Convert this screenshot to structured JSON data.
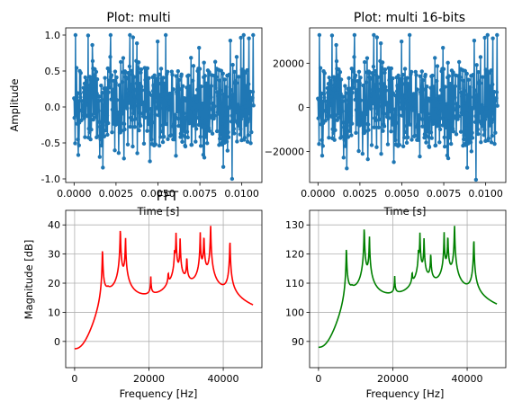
{
  "chart_data": [
    {
      "type": "line",
      "title": "Plot: multi",
      "xlabel": "Time [s]",
      "ylabel": "Amplitude",
      "xlim": [
        -0.0005,
        0.0112
      ],
      "ylim": [
        -1.05,
        1.1
      ],
      "xticks": [
        "0.0000",
        "0.0025",
        "0.0050",
        "0.0075",
        "0.0100"
      ],
      "xtick_values": [
        0,
        0.0025,
        0.005,
        0.0075,
        0.01
      ],
      "yticks": [
        "1.0",
        "0.5",
        "0.0",
        "-0.5",
        "-1.0"
      ],
      "ytick_values": [
        1.0,
        0.5,
        0.0,
        -0.5,
        -1.0
      ],
      "grid": false,
      "marker": "circle",
      "series": [
        {
          "color": "#1f77b4",
          "duration": 0.0107,
          "n": 512,
          "amplitude": 1.0
        }
      ]
    },
    {
      "type": "line",
      "title": "Plot: multi 16-bits",
      "xlabel": "Time [s]",
      "ylabel": "",
      "xlim": [
        -0.0005,
        0.0112
      ],
      "ylim": [
        -34000,
        36000
      ],
      "xticks": [
        "0.0000",
        "0.0025",
        "0.0050",
        "0.0075",
        "0.0100"
      ],
      "xtick_values": [
        0,
        0.0025,
        0.005,
        0.0075,
        0.01
      ],
      "yticks": [
        "20000",
        "0",
        "−20000"
      ],
      "ytick_values": [
        20000,
        0,
        -20000
      ],
      "grid": false,
      "marker": "circle",
      "series": [
        {
          "color": "#1f77b4",
          "duration": 0.0107,
          "n": 512,
          "amplitude": 32767
        }
      ]
    },
    {
      "type": "line",
      "title": "FFT",
      "xlabel": "Frequency [Hz]",
      "ylabel": "Magnitude [dB]",
      "xlim": [
        -2400,
        50400
      ],
      "ylim": [
        -9,
        45
      ],
      "xticks": [
        "0",
        "20000",
        "40000"
      ],
      "xtick_values": [
        0,
        20000,
        40000
      ],
      "yticks": [
        "40",
        "30",
        "20",
        "10",
        "0"
      ],
      "ytick_values": [
        40,
        30,
        20,
        10,
        0
      ],
      "grid": true,
      "series": [
        {
          "color": "#ff0000",
          "baseline": -2.5,
          "xmax": 48000,
          "peaks": [
            [
              7500,
              36
            ],
            [
              12300,
              39.5
            ],
            [
              13700,
              35.5
            ],
            [
              20500,
              17
            ],
            [
              25200,
              17
            ],
            [
              26900,
              27
            ],
            [
              27300,
              36.5
            ],
            [
              28400,
              34.5
            ],
            [
              30200,
              26.5
            ],
            [
              33800,
              36.5
            ],
            [
              34800,
              36
            ],
            [
              36600,
              40.5
            ],
            [
              41800,
              35.5
            ]
          ]
        }
      ]
    },
    {
      "type": "line",
      "title": "",
      "xlabel": "Frequency [Hz]",
      "ylabel": "",
      "xlim": [
        -2400,
        50400
      ],
      "ylim": [
        81,
        135
      ],
      "xticks": [
        "0",
        "20000",
        "40000"
      ],
      "xtick_values": [
        0,
        20000,
        40000
      ],
      "yticks": [
        "130",
        "120",
        "110",
        "100",
        "90"
      ],
      "ytick_values": [
        130,
        120,
        110,
        100,
        90
      ],
      "grid": true,
      "series": [
        {
          "color": "#008000",
          "baseline": 88,
          "xmax": 48000,
          "peaks": [
            [
              7500,
              126.5
            ],
            [
              12300,
              130
            ],
            [
              13700,
              126
            ],
            [
              20500,
              107
            ],
            [
              25200,
              107
            ],
            [
              26900,
              117
            ],
            [
              27300,
              126.5
            ],
            [
              28400,
              124.5
            ],
            [
              30200,
              118.5
            ],
            [
              33800,
              126.5
            ],
            [
              34800,
              126
            ],
            [
              36600,
              130.5
            ],
            [
              41800,
              126
            ]
          ]
        }
      ]
    }
  ]
}
